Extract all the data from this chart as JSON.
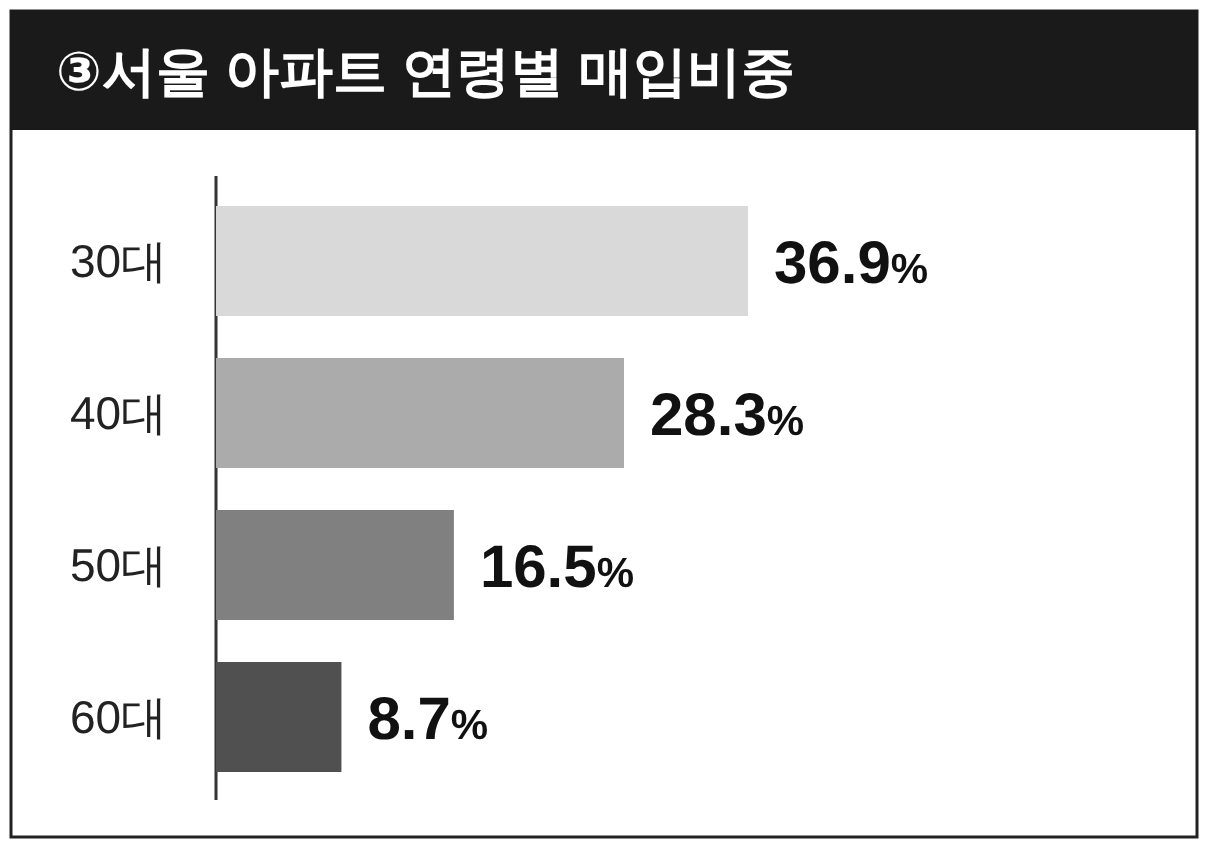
{
  "chart_data": {
    "type": "bar",
    "orientation": "horizontal",
    "title": "③서울 아파트 연령별 매입비중",
    "categories": [
      "30대",
      "40대",
      "50대",
      "60대"
    ],
    "values": [
      36.9,
      28.3,
      16.5,
      8.7
    ],
    "colors": [
      "#d9d9d9",
      "#ababab",
      "#808080",
      "#505050"
    ],
    "value_labels": [
      "36.9%",
      "28.3%",
      "16.5%",
      "8.7%"
    ]
  }
}
